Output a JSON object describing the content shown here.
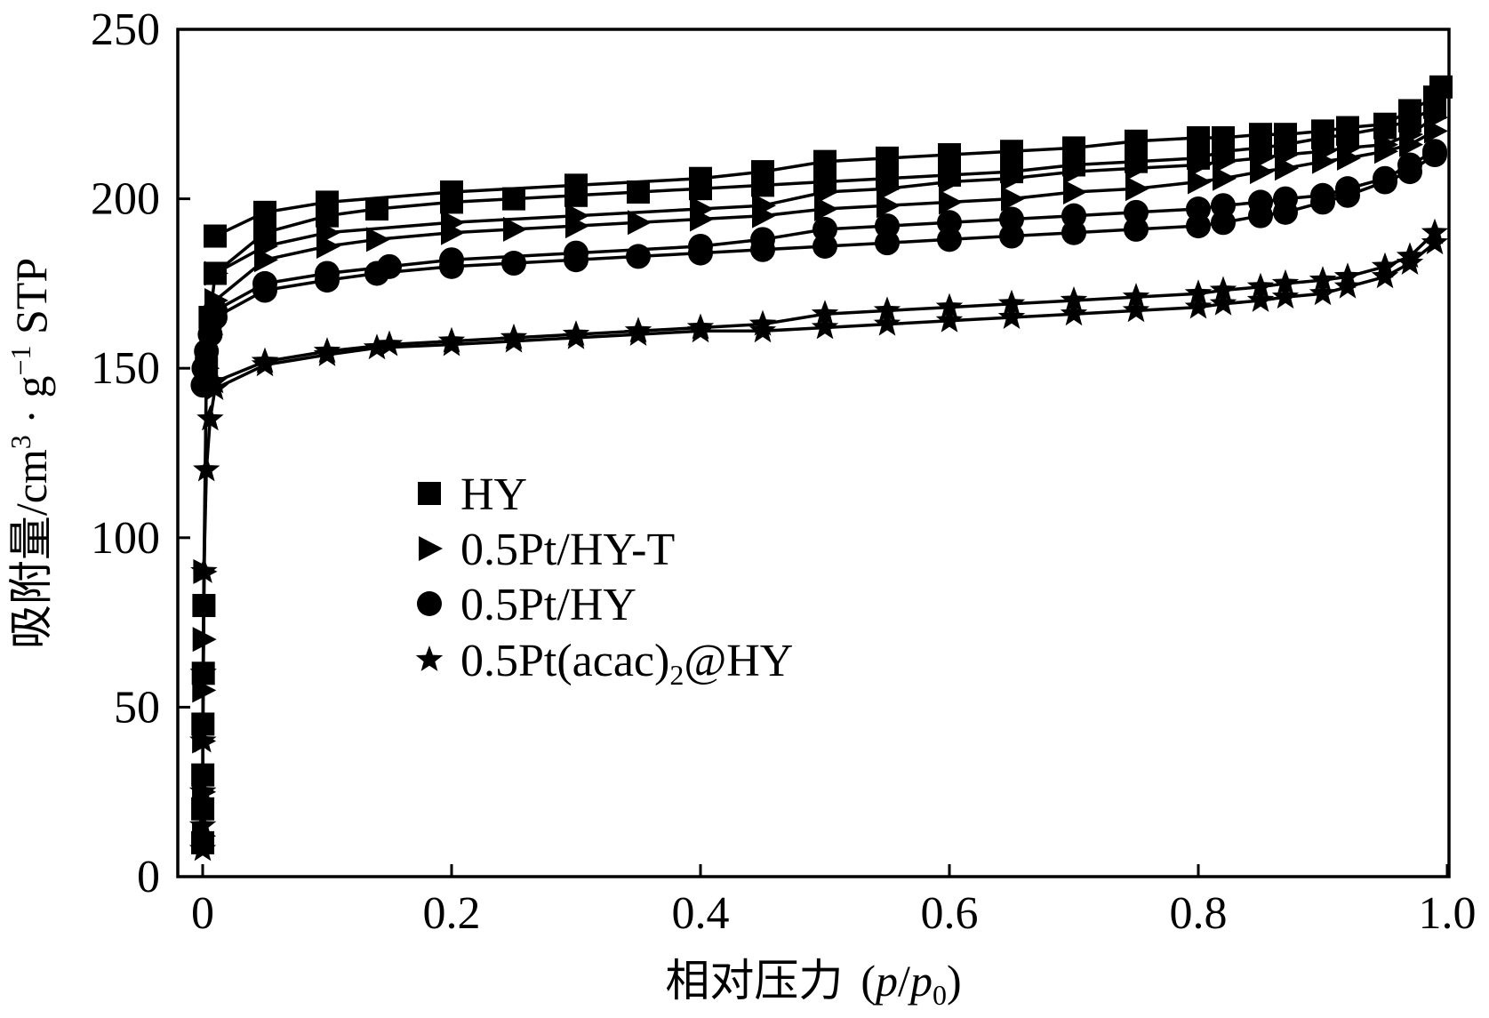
{
  "chart_data": {
    "type": "line",
    "xlabel": "相对压力 (p/p0)",
    "xlabel_parts": {
      "main": "相对压力",
      "open": "(",
      "p": "p",
      "slash": "/",
      "p0": "p",
      "p0_sub": "0",
      "close": ")"
    },
    "ylabel": "吸附量/cm3 · g−1 STP",
    "ylabel_parts": {
      "main": "吸附量/cm",
      "sup1": "3",
      "dot": " · g",
      "sup2": "−1",
      "tail": " STP"
    },
    "xlim": [
      -0.02,
      1.0
    ],
    "ylim": [
      0,
      250
    ],
    "xticks": [
      0,
      0.2,
      0.4,
      0.6,
      0.8,
      1.0
    ],
    "xtick_labels": [
      "0",
      "0.2",
      "0.4",
      "0.6",
      "0.8",
      "1.0"
    ],
    "yticks": [
      0,
      50,
      100,
      150,
      200,
      250
    ],
    "ytick_labels": [
      "0",
      "50",
      "100",
      "150",
      "200",
      "250"
    ],
    "grid": false,
    "legend_position": "center-left",
    "series": [
      {
        "name": "HY",
        "marker": "square",
        "adsorption": {
          "x": [
            2e-05,
            5e-05,
            0.0001,
            0.0002,
            0.0005,
            0.001,
            0.003,
            0.006,
            0.01,
            0.05,
            0.1,
            0.14,
            0.2,
            0.25,
            0.3,
            0.35,
            0.4,
            0.45,
            0.5,
            0.55,
            0.6,
            0.65,
            0.7,
            0.75,
            0.8,
            0.82,
            0.85,
            0.87,
            0.9,
            0.92,
            0.95,
            0.97,
            0.99,
            0.995
          ],
          "y": [
            10,
            20,
            30,
            45,
            60,
            80,
            150,
            165,
            178,
            190,
            195,
            197,
            199,
            200,
            201,
            202,
            203,
            204,
            205,
            206,
            207,
            208,
            210,
            211,
            212,
            214,
            215,
            216,
            218,
            219,
            221,
            223,
            227,
            233
          ]
        },
        "desorption": {
          "x": [
            0.99,
            0.97,
            0.95,
            0.92,
            0.9,
            0.87,
            0.85,
            0.82,
            0.8,
            0.75,
            0.7,
            0.65,
            0.6,
            0.55,
            0.5,
            0.45,
            0.4,
            0.3,
            0.2,
            0.1,
            0.05,
            0.01
          ],
          "y": [
            230,
            226,
            222,
            221,
            220,
            219,
            219,
            218,
            218,
            217,
            215,
            214,
            213,
            212,
            211,
            208,
            206,
            204,
            202,
            199,
            196,
            189
          ]
        }
      },
      {
        "name": "0.5Pt/HY-T",
        "marker": "triangle-right",
        "adsorption": {
          "x": [
            2e-05,
            5e-05,
            0.0001,
            0.0002,
            0.0005,
            0.001,
            0.003,
            0.006,
            0.01,
            0.05,
            0.1,
            0.14,
            0.2,
            0.25,
            0.3,
            0.35,
            0.4,
            0.45,
            0.5,
            0.55,
            0.6,
            0.65,
            0.7,
            0.75,
            0.8,
            0.82,
            0.85,
            0.87,
            0.9,
            0.92,
            0.95,
            0.97,
            0.99
          ],
          "y": [
            12,
            25,
            40,
            55,
            70,
            90,
            150,
            160,
            170,
            182,
            186,
            188,
            190,
            191,
            192,
            193,
            194,
            195,
            197,
            198,
            199,
            200,
            202,
            203,
            205,
            206,
            208,
            209,
            211,
            212,
            214,
            216,
            220
          ]
        },
        "desorption": {
          "x": [
            0.99,
            0.97,
            0.95,
            0.92,
            0.9,
            0.87,
            0.85,
            0.82,
            0.8,
            0.75,
            0.7,
            0.65,
            0.6,
            0.55,
            0.5,
            0.45,
            0.4,
            0.3,
            0.2,
            0.1,
            0.05,
            0.01
          ],
          "y": [
            224,
            219,
            216,
            215,
            214,
            213,
            212,
            211,
            210,
            209,
            208,
            206,
            205,
            203,
            202,
            198,
            197,
            195,
            193,
            190,
            186,
            178
          ]
        }
      },
      {
        "name": "0.5Pt/HY",
        "marker": "circle",
        "adsorption": {
          "x": [
            0.0003,
            0.001,
            0.003,
            0.006,
            0.01,
            0.05,
            0.1,
            0.14,
            0.2,
            0.25,
            0.3,
            0.35,
            0.4,
            0.45,
            0.5,
            0.55,
            0.6,
            0.65,
            0.7,
            0.75,
            0.8,
            0.82,
            0.85,
            0.87,
            0.9,
            0.92,
            0.95,
            0.97,
            0.99
          ],
          "y": [
            145,
            150,
            155,
            160,
            165,
            173,
            176,
            178,
            180,
            181,
            182,
            183,
            184,
            185,
            186,
            187,
            188,
            189,
            190,
            191,
            192,
            193,
            195,
            196,
            199,
            201,
            205,
            208,
            213
          ]
        },
        "desorption": {
          "x": [
            0.99,
            0.97,
            0.95,
            0.92,
            0.9,
            0.87,
            0.85,
            0.82,
            0.8,
            0.75,
            0.7,
            0.65,
            0.6,
            0.55,
            0.5,
            0.45,
            0.4,
            0.3,
            0.2,
            0.15,
            0.1,
            0.05,
            0.01
          ],
          "y": [
            214,
            210,
            206,
            203,
            201,
            200,
            199,
            198,
            197,
            196,
            195,
            194,
            193,
            192,
            191,
            188,
            186,
            184,
            182,
            180,
            178,
            175,
            167
          ]
        }
      },
      {
        "name": "0.5Pt(acac)2@HY",
        "name_parts": {
          "main": "0.5Pt(acac)",
          "sub": "2",
          "tail": "@HY"
        },
        "marker": "star",
        "adsorption": {
          "x": [
            2e-05,
            5e-05,
            0.0001,
            0.0002,
            0.0005,
            0.001,
            0.003,
            0.006,
            0.01,
            0.05,
            0.1,
            0.14,
            0.2,
            0.25,
            0.3,
            0.35,
            0.4,
            0.45,
            0.5,
            0.55,
            0.6,
            0.65,
            0.7,
            0.75,
            0.8,
            0.82,
            0.85,
            0.87,
            0.9,
            0.92,
            0.95,
            0.97,
            0.99
          ],
          "y": [
            8,
            15,
            25,
            40,
            60,
            90,
            120,
            135,
            144,
            151,
            154,
            156,
            157,
            158,
            159,
            160,
            161,
            161,
            162,
            163,
            164,
            165,
            166,
            167,
            168,
            169,
            170,
            171,
            172,
            174,
            177,
            181,
            187
          ]
        },
        "desorption": {
          "x": [
            0.99,
            0.97,
            0.95,
            0.92,
            0.9,
            0.87,
            0.85,
            0.82,
            0.8,
            0.75,
            0.7,
            0.65,
            0.6,
            0.55,
            0.5,
            0.45,
            0.4,
            0.35,
            0.3,
            0.25,
            0.2,
            0.15,
            0.1,
            0.05,
            0.01
          ],
          "y": [
            190,
            183,
            180,
            177,
            176,
            175,
            174,
            173,
            172,
            171,
            170,
            169,
            168,
            167,
            166,
            163,
            162,
            161,
            160,
            159,
            158,
            157,
            155,
            152,
            146
          ]
        }
      }
    ]
  }
}
